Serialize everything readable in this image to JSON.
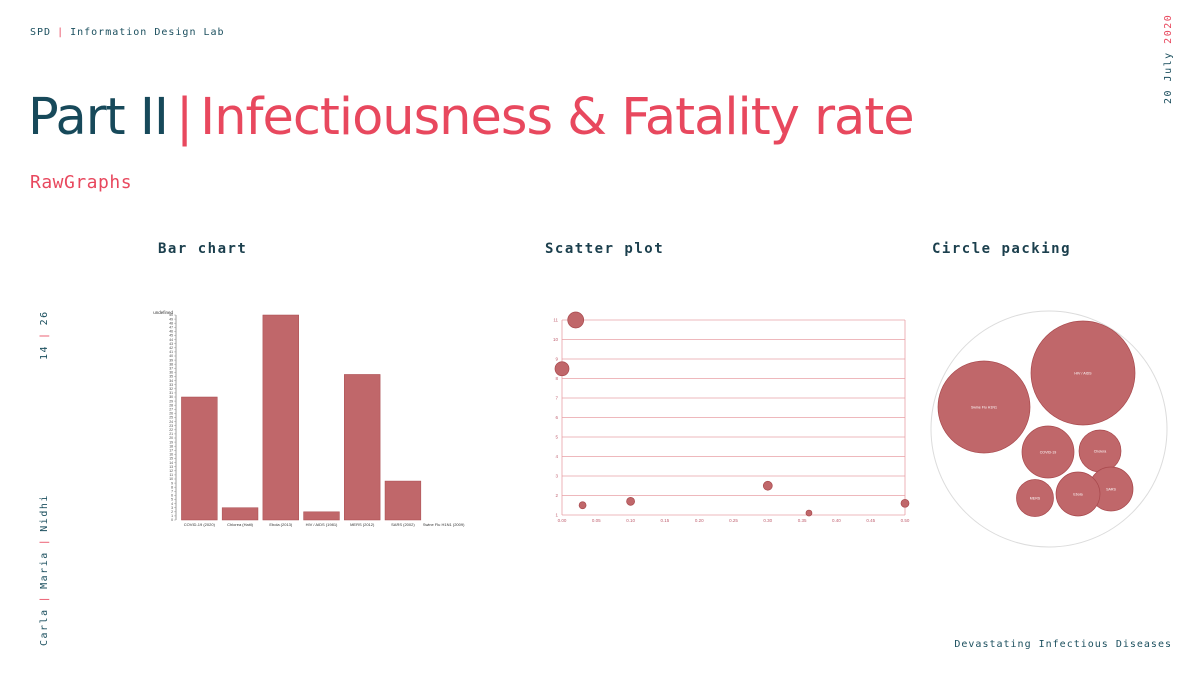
{
  "header": {
    "org": "SPD",
    "lab": "Information Design Lab"
  },
  "date": {
    "day_month": "20 July",
    "year": "2020"
  },
  "title": {
    "part": "Part II",
    "topic": "Infectiousness & Fatality rate"
  },
  "subtitle": "RawGraphs",
  "sections": {
    "bar": "Bar chart",
    "scatter": "Scatter plot",
    "circle": "Circle packing"
  },
  "pager": {
    "current": "14",
    "total": "26"
  },
  "authors": [
    "Carla",
    "Maria",
    "Nidhi"
  ],
  "footer": "Devastating Infectious Diseases",
  "colors": {
    "teal": "#17495a",
    "accent": "#e8485e",
    "mark": "#c0676a",
    "mark_stroke": "#a8494d",
    "grid": "#e8a0a6"
  },
  "chart_data": [
    {
      "type": "bar",
      "ylabel": "undefined",
      "categories": [
        "COVID-19 (2020)",
        "Chlorea (Haiti)",
        "Ebola (2013)",
        "HIV / AIDS (1981)",
        "MERS (2012)",
        "SARS (2002)",
        "Swine Flu H1N1 (2009)"
      ],
      "values": [
        30,
        3,
        50,
        2,
        35.5,
        9.5,
        0
      ],
      "ylim": [
        0,
        50
      ]
    },
    {
      "type": "scatter",
      "xlim": [
        0,
        0.5
      ],
      "ylim": [
        1,
        11
      ],
      "x_ticks": [
        "0.00",
        "0.05",
        "0.10",
        "0.15",
        "0.20",
        "0.25",
        "0.30",
        "0.35",
        "0.40",
        "0.45",
        "0.50"
      ],
      "y_ticks": [
        "1",
        "2",
        "3",
        "4",
        "5",
        "6",
        "7",
        "8",
        "9",
        "10",
        "11"
      ],
      "grid": true,
      "points": [
        {
          "x": 0.02,
          "y": 11,
          "size": 8
        },
        {
          "x": 0.0,
          "y": 8.5,
          "size": 7
        },
        {
          "x": 0.03,
          "y": 1.5,
          "size": 3.5
        },
        {
          "x": 0.1,
          "y": 1.7,
          "size": 4
        },
        {
          "x": 0.3,
          "y": 2.5,
          "size": 4.5
        },
        {
          "x": 0.36,
          "y": 1.1,
          "size": 3
        },
        {
          "x": 0.5,
          "y": 1.6,
          "size": 4
        }
      ]
    },
    {
      "type": "circle-packing",
      "circles": [
        {
          "label": "HIV / AIDS",
          "r": 52
        },
        {
          "label": "Swine Flu H1N1",
          "r": 46
        },
        {
          "label": "COVID-19",
          "r": 26
        },
        {
          "label": "Cholera",
          "r": 21
        },
        {
          "label": "SARS",
          "r": 22
        },
        {
          "label": "Ebola",
          "r": 22
        },
        {
          "label": "MERS",
          "r": 18.5
        }
      ]
    }
  ]
}
